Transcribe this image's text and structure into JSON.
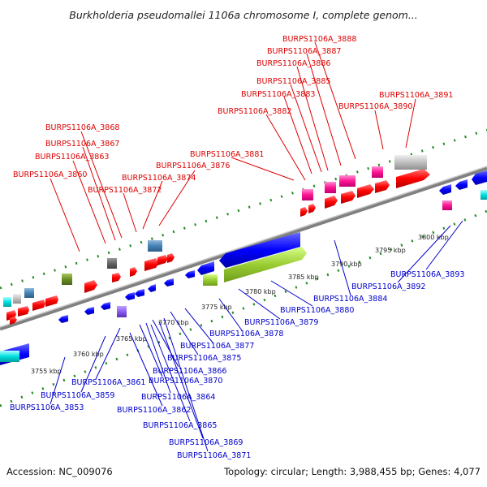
{
  "title": "Burkholderia pseudomallei 1106a chromosome I, complete genom...",
  "footer": {
    "accession": "Accession: NC_009076",
    "summary": "Topology: circular; Length: 3,988,455 bp; Genes: 4,077"
  },
  "scale_labels": [
    "3755 kbp",
    "3760 kbp",
    "3765 kbp",
    "3770 kbp",
    "3775 kbp",
    "3780 kbp",
    "3785 kbp",
    "3790 kbp",
    "3795 kbp",
    "3800 kbp"
  ],
  "top_gene_labels": [
    "BURPS1106A_3888",
    "BURPS1106A_3887",
    "BURPS1106A_3886",
    "BURPS1106A_3885",
    "BURPS1106A_3883",
    "BURPS1106A_3891",
    "BURPS1106A_3890",
    "BURPS1106A_3882",
    "BURPS1106A_3868",
    "BURPS1106A_3867",
    "BURPS1106A_3863",
    "BURPS1106A_3881",
    "BURPS1106A_3876",
    "BURPS1106A_3874",
    "BURPS1106A_3860",
    "BURPS1106A_3872"
  ],
  "bottom_gene_labels": [
    "BURPS1106A_3893",
    "BURPS1106A_3892",
    "BURPS1106A_3884",
    "BURPS1106A_3880",
    "BURPS1106A_3879",
    "BURPS1106A_3878",
    "BURPS1106A_3877",
    "BURPS1106A_3875",
    "BURPS1106A_3866",
    "BURPS1106A_3861",
    "BURPS1106A_3870",
    "BURPS1106A_3859",
    "BURPS1106A_3864",
    "BURPS1106A_3853",
    "BURPS1106A_3862",
    "BURPS1106A_3865",
    "BURPS1106A_3869",
    "BURPS1106A_3871"
  ],
  "colors": {
    "forward_label": "#dd0000",
    "reverse_label": "#0000cc",
    "backbone": "#888888",
    "forward_gene": "#ff0000",
    "reverse_gene": "#0000ff",
    "rna_gene": "#ff1493",
    "dotted_track": "#228b22",
    "pseudogene": "#b0b0b0"
  }
}
